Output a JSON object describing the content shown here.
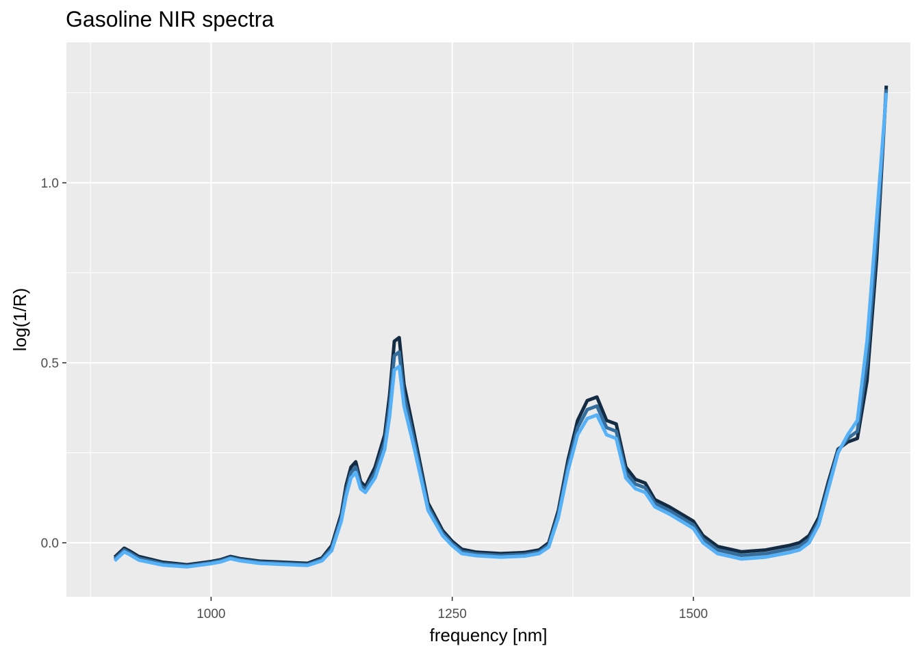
{
  "chart_data": {
    "type": "line",
    "title": "Gasoline NIR spectra",
    "xlabel": "frequency [nm]",
    "ylabel": "log(1/R)",
    "xlim": [
      850,
      1725
    ],
    "ylim": [
      -0.15,
      1.39
    ],
    "x_ticks": [
      {
        "value": 1000,
        "label": "1000"
      },
      {
        "value": 1250,
        "label": "1250"
      },
      {
        "value": 1500,
        "label": "1500"
      }
    ],
    "y_ticks": [
      {
        "value": 0.0,
        "label": "0.0"
      },
      {
        "value": 0.5,
        "label": "0.5"
      },
      {
        "value": 1.0,
        "label": "1.0"
      }
    ],
    "grid": true,
    "legend": "none",
    "colors": {
      "panel": "#EBEBEB",
      "grid": "#FFFFFF",
      "series_low": "#132B43",
      "series_high": "#56B1F7"
    },
    "x": [
      900,
      910,
      915,
      925,
      950,
      975,
      1000,
      1010,
      1020,
      1030,
      1050,
      1075,
      1100,
      1115,
      1125,
      1135,
      1140,
      1145,
      1150,
      1155,
      1160,
      1170,
      1180,
      1185,
      1190,
      1195,
      1200,
      1210,
      1225,
      1240,
      1250,
      1260,
      1275,
      1300,
      1325,
      1340,
      1350,
      1360,
      1370,
      1380,
      1390,
      1400,
      1410,
      1420,
      1430,
      1440,
      1450,
      1460,
      1475,
      1500,
      1510,
      1525,
      1550,
      1575,
      1600,
      1610,
      1620,
      1630,
      1640,
      1650,
      1660,
      1670,
      1680,
      1690,
      1700
    ],
    "series": [
      {
        "values": [
          -0.05,
          -0.025,
          -0.032,
          -0.048,
          -0.062,
          -0.067,
          -0.058,
          -0.053,
          -0.044,
          -0.05,
          -0.057,
          -0.06,
          -0.063,
          -0.05,
          -0.022,
          0.06,
          0.13,
          0.18,
          0.195,
          0.15,
          0.14,
          0.18,
          0.26,
          0.35,
          0.48,
          0.49,
          0.38,
          0.27,
          0.09,
          0.02,
          -0.008,
          -0.03,
          -0.036,
          -0.04,
          -0.037,
          -0.03,
          -0.012,
          0.07,
          0.2,
          0.3,
          0.345,
          0.355,
          0.3,
          0.29,
          0.18,
          0.15,
          0.14,
          0.1,
          0.08,
          0.04,
          0.0,
          -0.03,
          -0.045,
          -0.04,
          -0.027,
          -0.02,
          0.0,
          0.05,
          0.15,
          0.25,
          0.3,
          0.34,
          0.56,
          0.9,
          1.25
        ]
      },
      {
        "values": [
          -0.045,
          -0.02,
          -0.027,
          -0.043,
          -0.058,
          -0.064,
          -0.055,
          -0.05,
          -0.041,
          -0.047,
          -0.054,
          -0.057,
          -0.06,
          -0.046,
          -0.015,
          0.07,
          0.145,
          0.195,
          0.21,
          0.16,
          0.148,
          0.195,
          0.28,
          0.38,
          0.52,
          0.53,
          0.41,
          0.29,
          0.1,
          0.027,
          -0.002,
          -0.024,
          -0.031,
          -0.035,
          -0.032,
          -0.025,
          -0.006,
          0.08,
          0.215,
          0.32,
          0.37,
          0.38,
          0.32,
          0.31,
          0.195,
          0.163,
          0.153,
          0.11,
          0.09,
          0.05,
          0.01,
          -0.02,
          -0.035,
          -0.03,
          -0.017,
          -0.01,
          0.01,
          0.06,
          0.16,
          0.255,
          0.29,
          0.31,
          0.5,
          0.84,
          1.26
        ]
      },
      {
        "values": [
          -0.04,
          -0.015,
          -0.022,
          -0.038,
          -0.054,
          -0.061,
          -0.052,
          -0.047,
          -0.038,
          -0.044,
          -0.051,
          -0.054,
          -0.057,
          -0.042,
          -0.008,
          0.08,
          0.16,
          0.21,
          0.225,
          0.17,
          0.156,
          0.21,
          0.3,
          0.41,
          0.56,
          0.57,
          0.44,
          0.31,
          0.11,
          0.034,
          0.004,
          -0.018,
          -0.026,
          -0.03,
          -0.027,
          -0.02,
          0.0,
          0.09,
          0.23,
          0.34,
          0.395,
          0.405,
          0.34,
          0.33,
          0.21,
          0.176,
          0.166,
          0.12,
          0.1,
          0.06,
          0.02,
          -0.01,
          -0.025,
          -0.02,
          -0.007,
          0.0,
          0.02,
          0.07,
          0.17,
          0.26,
          0.28,
          0.29,
          0.45,
          0.79,
          1.27
        ]
      }
    ]
  }
}
